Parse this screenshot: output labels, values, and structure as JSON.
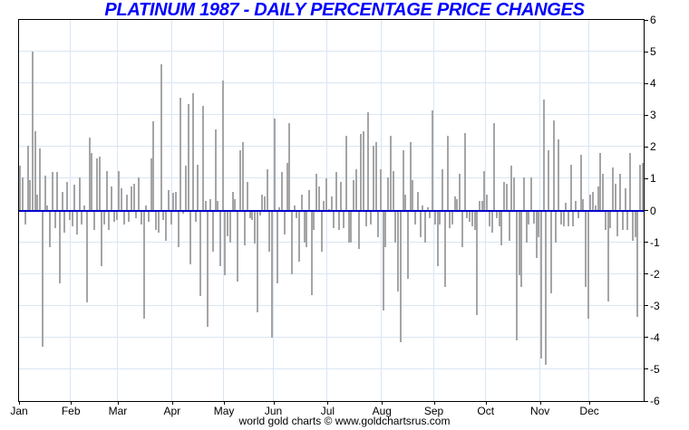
{
  "title": "PLATINUM 1987 - DAILY PERCENTAGE PRICE CHANGES",
  "footer": "world gold charts © www.goldchartsrus.com",
  "colors": {
    "title": "#0000ff",
    "bar": "#a5a5a5",
    "zero_line": "#0000cc",
    "grid": "#d9e6f3",
    "axis": "#000000",
    "text": "#000000",
    "background": "#ffffff"
  },
  "chart_data": {
    "type": "bar",
    "title": "PLATINUM 1987 - DAILY PERCENTAGE PRICE CHANGES",
    "xlabel": "",
    "ylabel": "",
    "unit": "percent",
    "grid": "on",
    "legend": "none",
    "y_axis": {
      "min": -6,
      "max": 6,
      "step": 1,
      "side": "right",
      "tick_labels": [
        "6",
        "5",
        "4",
        "3",
        "2",
        "1",
        "0",
        "-1",
        "-2",
        "-3",
        "-4",
        "-5",
        "-6"
      ]
    },
    "x_axis": {
      "tick_labels": [
        "Jan",
        "Feb",
        "Mar",
        "Apr",
        "May",
        "Jun",
        "Jul",
        "Aug",
        "Sep",
        "Oct",
        "Nov",
        "Dec"
      ]
    },
    "series": [
      {
        "name": "Daily percentage price change",
        "values_by_month": {
          "Jan": [
            1.4,
            1.05,
            -0.45,
            2.05,
            0.95,
            5.0,
            2.5,
            0.5,
            1.95,
            -4.3,
            1.1,
            0.15,
            -1.15,
            1.2,
            -0.55,
            1.2,
            -2.3,
            0.6,
            -0.7,
            0.9,
            -0.3
          ],
          "Feb": [
            -0.5,
            0.8,
            -0.75,
            1.05,
            -0.45,
            0.15,
            -2.9,
            2.3,
            1.8,
            -0.6,
            1.65,
            1.7,
            -1.75,
            -0.45,
            1.25,
            -0.6,
            0.75,
            -0.35,
            -0.3
          ],
          "Mar": [
            1.25,
            0.7,
            -0.45,
            0.5,
            -0.35,
            0.75,
            0.85,
            -0.25,
            1.05,
            -0.45,
            -3.4,
            0.15,
            -0.35,
            1.65,
            2.8,
            -0.6,
            -0.7,
            4.6,
            -0.3,
            -0.95,
            0.65,
            -0.45
          ],
          "Apr": [
            0.55,
            0.6,
            -1.15,
            3.55,
            -0.1,
            1.4,
            3.35,
            -1.7,
            3.7,
            -0.35,
            1.45,
            -2.7,
            3.3,
            0.3,
            -3.65,
            0.35,
            -1.3,
            2.55,
            0.3,
            -1.75,
            4.1
          ],
          "May": [
            -2.05,
            -0.8,
            -1.0,
            0.6,
            0.35,
            -2.25,
            1.9,
            2.15,
            -1.1,
            0.9,
            -0.25,
            -0.3,
            -1.05,
            -3.2,
            -0.15,
            0.5,
            0.45,
            1.3,
            -1.3,
            -4.0
          ],
          "Jun": [
            2.9,
            -2.3,
            0.1,
            1.2,
            -0.75,
            1.5,
            2.75,
            -2.0,
            0.15,
            -0.25,
            -1.6,
            0.5,
            -1.0,
            -1.15,
            0.65,
            -2.65,
            -0.6,
            1.15,
            0.75,
            -1.3,
            0.3,
            1.0
          ],
          "Jul": [
            0.05,
            0.45,
            -0.55,
            1.2,
            -0.6,
            0.9,
            -0.55,
            2.35,
            -1.0,
            -1.0,
            0.95,
            1.3,
            -1.2,
            2.4,
            2.5,
            -0.5,
            3.1,
            -0.45,
            2.05,
            2.15,
            -0.85,
            1.3
          ],
          "Aug": [
            -3.15,
            -1.15,
            1.05,
            2.35,
            1.25,
            -1.0,
            -2.55,
            -4.15,
            1.9,
            0.5,
            -2.15,
            2.15,
            0.95,
            -0.45,
            0.6,
            -0.85,
            0.15,
            -1.0,
            0.1,
            -0.25,
            3.15
          ],
          "Sep": [
            -0.45,
            -1.75,
            -0.45,
            1.3,
            -2.4,
            2.35,
            -0.55,
            -0.45,
            0.45,
            0.35,
            1.15,
            -1.15,
            2.45,
            -0.25,
            -0.35,
            -0.5,
            -0.6,
            -3.3,
            0.3,
            0.3,
            1.25
          ],
          "Oct": [
            0.5,
            -0.5,
            -0.7,
            2.75,
            -0.25,
            -0.5,
            -1.1,
            0.9,
            0.85,
            -0.95,
            1.4,
            1.05,
            -4.1,
            -2.05,
            -2.4,
            1.05,
            -1.0,
            -0.45,
            1.05,
            -0.4,
            -1.5,
            -0.85
          ],
          "Nov": [
            -4.65,
            3.5,
            -4.85,
            1.9,
            -2.6,
            2.85,
            -1.0,
            2.25,
            -0.45,
            -0.5,
            0.25,
            -0.5,
            1.45,
            -0.5,
            0.3,
            -0.25,
            1.75,
            0.35,
            -2.4,
            -3.4
          ],
          "Dec": [
            0.5,
            0.6,
            0.15,
            0.75,
            1.8,
            1.15,
            -0.6,
            -2.85,
            -0.55,
            1.35,
            0.85,
            -0.8,
            1.15,
            -0.6,
            0.7,
            -0.6,
            1.8,
            -0.95,
            -0.85,
            -3.35,
            1.45,
            1.5
          ]
        }
      }
    ]
  }
}
